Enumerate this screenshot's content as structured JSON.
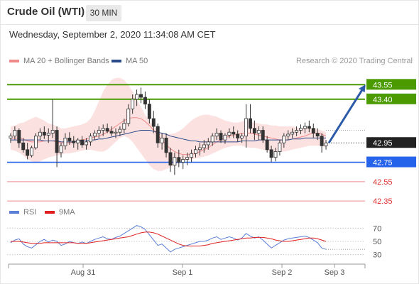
{
  "header": {
    "title": "Crude Oil (WTI)",
    "timeframe": "30 MIN",
    "datetime": "Wednesday, September 2, 2020 11:34:08 AM CET"
  },
  "legend": {
    "ma20": "MA 20 + Bollinger Bands",
    "ma50": "MA 50",
    "research": "Research © 2020 Trading Central",
    "ma20_color": "#f08a8a",
    "ma50_color": "#2b4a8a"
  },
  "rsi_legend": {
    "rsi": "RSI",
    "ma9": "9MA",
    "rsi_color": "#5b7fd6",
    "ma9_color": "#e02020"
  },
  "chart_data": [
    {
      "type": "candlestick",
      "x_ticks": [
        "Aug 31",
        "Sep 1",
        "Sep 2",
        "Sep 3"
      ],
      "ylim": [
        42.3,
        43.75
      ],
      "last_price": {
        "value": "42.95",
        "color": "#222222"
      },
      "levels": [
        {
          "value": 43.55,
          "label": "43.55",
          "color": "#4a9a00",
          "style": "resistance"
        },
        {
          "value": 43.4,
          "label": "43.40",
          "color": "#4a9a00",
          "style": "resistance"
        },
        {
          "value": 42.75,
          "label": "42.75",
          "color": "#2563eb",
          "style": "pivot"
        },
        {
          "value": 42.55,
          "label": "42.55",
          "color": "#e03030",
          "style": "support"
        },
        {
          "value": 42.35,
          "label": "42.35",
          "color": "#e03030",
          "style": "support"
        }
      ],
      "candles": [
        [
          43.0,
          43.05,
          42.95,
          43.02
        ],
        [
          43.02,
          43.12,
          42.98,
          43.08
        ],
        [
          43.08,
          43.1,
          42.9,
          42.95
        ],
        [
          42.95,
          43.0,
          42.85,
          42.88
        ],
        [
          42.88,
          42.95,
          42.78,
          42.82
        ],
        [
          42.82,
          42.92,
          42.8,
          42.9
        ],
        [
          42.9,
          43.05,
          42.88,
          43.02
        ],
        [
          43.02,
          43.1,
          42.98,
          43.06
        ],
        [
          43.06,
          43.12,
          42.99,
          43.03
        ],
        [
          43.03,
          43.1,
          42.95,
          43.05
        ],
        [
          43.05,
          43.4,
          43.0,
          43.08
        ],
        [
          43.08,
          43.12,
          42.7,
          42.85
        ],
        [
          42.85,
          42.95,
          42.8,
          42.92
        ],
        [
          42.92,
          43.05,
          42.88,
          43.0
        ],
        [
          43.0,
          43.06,
          42.93,
          42.97
        ],
        [
          42.97,
          43.02,
          42.9,
          42.95
        ],
        [
          42.95,
          43.0,
          42.88,
          42.98
        ],
        [
          42.98,
          43.02,
          42.9,
          42.93
        ],
        [
          42.93,
          43.0,
          42.88,
          42.96
        ],
        [
          42.96,
          43.05,
          42.92,
          43.02
        ],
        [
          43.02,
          43.08,
          42.98,
          43.05
        ],
        [
          43.05,
          43.12,
          43.0,
          43.08
        ],
        [
          43.08,
          43.14,
          43.02,
          43.1
        ],
        [
          43.1,
          43.15,
          43.05,
          43.07
        ],
        [
          43.07,
          43.12,
          43.02,
          43.05
        ],
        [
          43.05,
          43.1,
          43.0,
          43.06
        ],
        [
          43.06,
          43.12,
          43.02,
          43.09
        ],
        [
          43.09,
          43.2,
          43.05,
          43.15
        ],
        [
          43.15,
          43.35,
          43.12,
          43.3
        ],
        [
          43.3,
          43.45,
          43.25,
          43.4
        ],
        [
          43.4,
          43.5,
          43.33,
          43.45
        ],
        [
          43.45,
          43.52,
          43.36,
          43.42
        ],
        [
          43.42,
          43.48,
          43.3,
          43.35
        ],
        [
          43.35,
          43.4,
          43.15,
          43.2
        ],
        [
          43.2,
          43.28,
          43.05,
          43.12
        ],
        [
          43.12,
          43.15,
          42.9,
          42.95
        ],
        [
          42.95,
          43.05,
          42.88,
          43.0
        ],
        [
          43.0,
          43.05,
          42.8,
          42.85
        ],
        [
          42.85,
          42.9,
          42.65,
          42.72
        ],
        [
          42.72,
          42.85,
          42.62,
          42.8
        ],
        [
          42.8,
          42.88,
          42.7,
          42.75
        ],
        [
          42.75,
          42.82,
          42.68,
          42.78
        ],
        [
          42.78,
          42.85,
          42.72,
          42.8
        ],
        [
          42.8,
          42.88,
          42.75,
          42.84
        ],
        [
          42.84,
          42.92,
          42.8,
          42.88
        ],
        [
          42.88,
          42.95,
          42.82,
          42.9
        ],
        [
          42.9,
          42.98,
          42.85,
          42.93
        ],
        [
          42.93,
          43.0,
          42.88,
          42.96
        ],
        [
          42.96,
          43.05,
          42.92,
          43.02
        ],
        [
          43.02,
          43.1,
          42.98,
          43.05
        ],
        [
          43.05,
          43.08,
          42.95,
          42.98
        ],
        [
          42.98,
          43.05,
          42.94,
          43.03
        ],
        [
          43.03,
          43.1,
          43.0,
          43.06
        ],
        [
          43.06,
          43.12,
          43.0,
          43.04
        ],
        [
          43.04,
          43.08,
          42.96,
          43.0
        ],
        [
          43.0,
          43.05,
          42.95,
          43.02
        ],
        [
          43.02,
          43.35,
          42.9,
          43.2
        ],
        [
          43.2,
          43.35,
          43.05,
          43.1
        ],
        [
          43.1,
          43.18,
          42.98,
          43.05
        ],
        [
          43.05,
          43.12,
          42.98,
          43.08
        ],
        [
          43.08,
          43.12,
          42.95,
          42.98
        ],
        [
          42.98,
          43.02,
          42.85,
          42.88
        ],
        [
          42.88,
          42.92,
          42.75,
          42.8
        ],
        [
          42.8,
          42.9,
          42.76,
          42.86
        ],
        [
          42.86,
          42.98,
          42.82,
          42.95
        ],
        [
          42.95,
          43.05,
          42.9,
          43.02
        ],
        [
          43.02,
          43.08,
          42.98,
          43.04
        ],
        [
          43.04,
          43.1,
          43.0,
          43.06
        ],
        [
          43.06,
          43.12,
          43.02,
          43.08
        ],
        [
          43.08,
          43.14,
          43.04,
          43.1
        ],
        [
          43.1,
          43.16,
          43.05,
          43.12
        ],
        [
          43.12,
          43.18,
          43.06,
          43.1
        ],
        [
          43.1,
          43.15,
          43.0,
          43.05
        ],
        [
          43.05,
          43.1,
          42.98,
          43.02
        ],
        [
          43.02,
          43.05,
          42.85,
          42.92
        ],
        [
          42.92,
          42.98,
          42.88,
          42.95
        ]
      ],
      "ma20": [
        43.0,
        43.0,
        43.0,
        42.99,
        42.97,
        42.96,
        42.96,
        42.96,
        42.97,
        42.97,
        42.97,
        42.96,
        42.95,
        42.95,
        42.95,
        42.96,
        42.97,
        42.98,
        42.99,
        43.0,
        43.01,
        43.02,
        43.04,
        43.06,
        43.09,
        43.12,
        43.15,
        43.18,
        43.2,
        43.21,
        43.21,
        43.2,
        43.17,
        43.13,
        43.08,
        43.03,
        42.98,
        42.93,
        42.89,
        42.86,
        42.84,
        42.83,
        42.83,
        42.83,
        42.84,
        42.86,
        42.88,
        42.9,
        42.93,
        42.96,
        42.98,
        43.0,
        43.02,
        43.03,
        43.04,
        43.05,
        43.05,
        43.05,
        43.04,
        43.03,
        43.02,
        43.01,
        43.0,
        42.99,
        42.98,
        42.98,
        42.98,
        42.99,
        43.0,
        43.01,
        43.02,
        43.04,
        43.05,
        43.05,
        43.04,
        43.02
      ],
      "bb_upper": [
        43.12,
        43.13,
        43.15,
        43.16,
        43.18,
        43.2,
        43.22,
        43.2,
        43.18,
        43.15,
        43.14,
        43.12,
        43.1,
        43.1,
        43.11,
        43.12,
        43.13,
        43.14,
        43.16,
        43.2,
        43.28,
        43.38,
        43.48,
        43.55,
        43.6,
        43.62,
        43.62,
        43.6,
        43.55,
        43.48,
        43.4,
        43.32,
        43.24,
        43.18,
        43.12,
        43.08,
        43.05,
        43.04,
        43.04,
        43.05,
        43.07,
        43.1,
        43.14,
        43.18,
        43.21,
        43.23,
        43.24,
        43.24,
        43.23,
        43.22,
        43.2,
        43.18,
        43.17,
        43.16,
        43.16,
        43.17,
        43.18,
        43.17,
        43.16,
        43.15,
        43.14,
        43.14,
        43.13,
        43.13,
        43.12,
        43.12,
        43.12,
        43.12,
        43.11,
        43.1,
        43.1,
        43.1,
        43.1,
        43.09,
        43.08,
        43.06
      ],
      "bb_lower": [
        42.88,
        42.87,
        42.85,
        42.82,
        42.78,
        42.76,
        42.74,
        42.76,
        42.78,
        42.8,
        42.81,
        42.82,
        42.83,
        42.84,
        42.84,
        42.85,
        42.86,
        42.87,
        42.88,
        42.88,
        42.87,
        42.86,
        42.86,
        42.88,
        42.92,
        42.96,
        43.0,
        43.02,
        43.0,
        42.96,
        42.9,
        42.84,
        42.78,
        42.72,
        42.68,
        42.66,
        42.66,
        42.68,
        42.7,
        42.72,
        42.74,
        42.76,
        42.77,
        42.78,
        42.79,
        42.8,
        42.81,
        42.82,
        42.84,
        42.86,
        42.88,
        42.9,
        42.91,
        42.92,
        42.92,
        42.92,
        42.91,
        42.9,
        42.9,
        42.89,
        42.88,
        42.87,
        42.86,
        42.86,
        42.86,
        42.86,
        42.87,
        42.88,
        42.89,
        42.9,
        42.91,
        42.92,
        42.92,
        42.92,
        42.92,
        42.9
      ],
      "ma50": [
        42.98,
        42.98,
        42.98,
        42.98,
        42.98,
        42.98,
        42.98,
        42.98,
        42.97,
        42.97,
        42.97,
        42.97,
        42.96,
        42.96,
        42.96,
        42.96,
        42.97,
        42.97,
        42.97,
        42.98,
        42.98,
        42.99,
        42.99,
        43.0,
        43.01,
        43.02,
        43.03,
        43.04,
        43.05,
        43.06,
        43.07,
        43.08,
        43.08,
        43.08,
        43.07,
        43.06,
        43.05,
        43.04,
        43.02,
        43.01,
        43.0,
        42.99,
        42.98,
        42.97,
        42.97,
        42.96,
        42.96,
        42.96,
        42.96,
        42.96,
        42.96,
        42.96,
        42.96,
        42.96,
        42.96,
        42.97,
        42.97,
        42.97,
        42.97,
        42.98,
        42.98,
        42.98,
        42.98,
        42.98,
        42.98,
        42.98,
        42.98,
        42.99,
        42.99,
        42.99,
        43.0,
        43.0,
        43.0,
        43.0,
        43.0,
        43.0
      ]
    },
    {
      "type": "line",
      "y_ticks": [
        "70",
        "50",
        "30"
      ],
      "ylim": [
        20,
        80
      ],
      "last_value": 38,
      "series": [
        {
          "name": "RSI",
          "values": [
            48,
            52,
            54,
            46,
            42,
            40,
            45,
            50,
            53,
            49,
            52,
            50,
            44,
            46,
            50,
            48,
            47,
            49,
            47,
            50,
            53,
            55,
            57,
            54,
            53,
            56,
            58,
            62,
            66,
            70,
            74,
            72,
            68,
            60,
            52,
            44,
            46,
            40,
            34,
            38,
            40,
            42,
            44,
            46,
            48,
            50,
            50,
            52,
            55,
            57,
            53,
            55,
            57,
            55,
            52,
            55,
            62,
            58,
            55,
            57,
            52,
            46,
            40,
            44,
            48,
            52,
            54,
            55,
            56,
            57,
            58,
            56,
            52,
            48,
            40,
            38
          ]
        },
        {
          "name": "9MA",
          "values": [
            50,
            50,
            50,
            49,
            48,
            47,
            47,
            47,
            48,
            48,
            48,
            48,
            48,
            48,
            48,
            48,
            47,
            47,
            47,
            48,
            49,
            50,
            51,
            52,
            53,
            54,
            55,
            56,
            57,
            59,
            61,
            63,
            64,
            64,
            63,
            61,
            58,
            55,
            52,
            49,
            46,
            44,
            43,
            43,
            43,
            43,
            44,
            45,
            47,
            48,
            49,
            50,
            51,
            52,
            53,
            54,
            55,
            55,
            56,
            56,
            56,
            55,
            54,
            52,
            51,
            50,
            50,
            51,
            52,
            53,
            54,
            55,
            55,
            54,
            52,
            50
          ]
        }
      ]
    }
  ]
}
